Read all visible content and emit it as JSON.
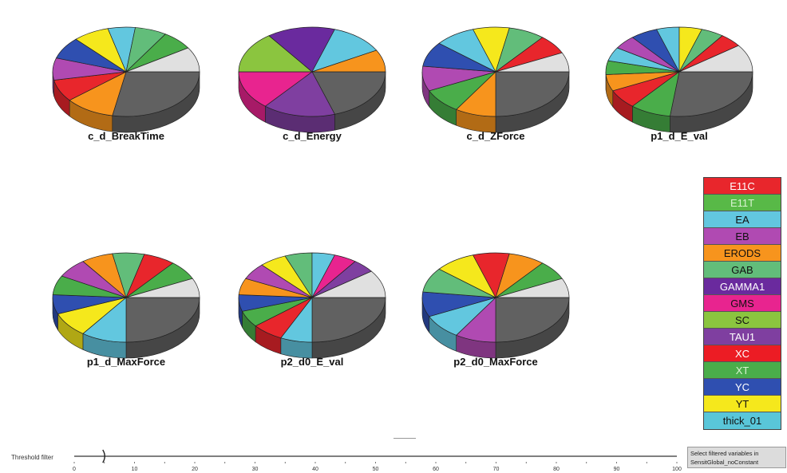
{
  "colors": {
    "E11C": "#e8262c",
    "E11T": "#58b947",
    "EA": "#62c7df",
    "EB": "#b04ab2",
    "ERODS": "#f7941d",
    "GAB": "#62bd7a",
    "GAMMA1": "#6a2a9e",
    "GMS": "#e8248f",
    "SC": "#8bc53f",
    "TAU1": "#7f3fa0",
    "XC": "#ec1c24",
    "XT": "#4aad4a",
    "YC": "#2f4fb0",
    "YT": "#f5e81c",
    "thick_01": "#59c6d9",
    "remainder": "#616161",
    "lid": "#e0e0e0"
  },
  "legend": {
    "items": [
      {
        "label": "E11C",
        "key": "E11C",
        "text_color": "#ffffff"
      },
      {
        "label": "E11T",
        "key": "E11T",
        "text_color": "#d8f3d0"
      },
      {
        "label": "EA",
        "key": "EA",
        "text_color": "#111111"
      },
      {
        "label": "EB",
        "key": "EB",
        "text_color": "#111111"
      },
      {
        "label": "ERODS",
        "key": "ERODS",
        "text_color": "#111111"
      },
      {
        "label": "GAB",
        "key": "GAB",
        "text_color": "#111111"
      },
      {
        "label": "GAMMA1",
        "key": "GAMMA1",
        "text_color": "#ffffff"
      },
      {
        "label": "GMS",
        "key": "GMS",
        "text_color": "#111111"
      },
      {
        "label": "SC",
        "key": "SC",
        "text_color": "#111111"
      },
      {
        "label": "TAU1",
        "key": "TAU1",
        "text_color": "#ffffff"
      },
      {
        "label": "XC",
        "key": "XC",
        "text_color": "#ffffff"
      },
      {
        "label": "XT",
        "key": "XT",
        "text_color": "#d8f3d0"
      },
      {
        "label": "YC",
        "key": "YC",
        "text_color": "#ffffff"
      },
      {
        "label": "YT",
        "key": "YT",
        "text_color": "#111111"
      },
      {
        "label": "thick_01",
        "key": "thick_01",
        "text_color": "#111111"
      }
    ]
  },
  "chart_data": [
    {
      "type": "pie",
      "title": "c_d_BreakTime",
      "slices": [
        {
          "label": "remainder",
          "value": 28
        },
        {
          "label": "ERODS",
          "value": 11
        },
        {
          "label": "E11C",
          "value": 8
        },
        {
          "label": "EB",
          "value": 8
        },
        {
          "label": "YC",
          "value": 8
        },
        {
          "label": "YT",
          "value": 8
        },
        {
          "label": "EA",
          "value": 6
        },
        {
          "label": "GAB",
          "value": 7
        },
        {
          "label": "XT",
          "value": 7
        },
        {
          "label": "lid",
          "value": 9
        }
      ]
    },
    {
      "type": "pie",
      "title": "c_d_Energy",
      "slices": [
        {
          "label": "remainder",
          "value": 20
        },
        {
          "label": "TAU1",
          "value": 16
        },
        {
          "label": "GMS",
          "value": 14
        },
        {
          "label": "SC",
          "value": 15
        },
        {
          "label": "GAMMA1",
          "value": 15
        },
        {
          "label": "EA",
          "value": 12
        },
        {
          "label": "ERODS",
          "value": 8
        }
      ]
    },
    {
      "type": "pie",
      "title": "c_d_ZForce",
      "slices": [
        {
          "label": "remainder",
          "value": 25
        },
        {
          "label": "ERODS",
          "value": 9
        },
        {
          "label": "XT",
          "value": 9
        },
        {
          "label": "EB",
          "value": 9
        },
        {
          "label": "YC",
          "value": 9
        },
        {
          "label": "EA",
          "value": 9
        },
        {
          "label": "YT",
          "value": 8
        },
        {
          "label": "GAB",
          "value": 8
        },
        {
          "label": "E11C",
          "value": 7
        },
        {
          "label": "lid",
          "value": 7
        }
      ]
    },
    {
      "type": "pie",
      "title": "p1_d_E_val",
      "slices": [
        {
          "label": "remainder",
          "value": 27
        },
        {
          "label": "XT",
          "value": 9
        },
        {
          "label": "E11C",
          "value": 7
        },
        {
          "label": "ERODS",
          "value": 6
        },
        {
          "label": "XT",
          "value": 5
        },
        {
          "label": "EA",
          "value": 5
        },
        {
          "label": "EB",
          "value": 5
        },
        {
          "label": "YC",
          "value": 6
        },
        {
          "label": "EA",
          "value": 5
        },
        {
          "label": "YT",
          "value": 5
        },
        {
          "label": "GAB",
          "value": 5
        },
        {
          "label": "E11C",
          "value": 5
        },
        {
          "label": "lid",
          "value": 10
        }
      ]
    },
    {
      "type": "pie",
      "title": "p1_d_MaxForce",
      "slices": [
        {
          "label": "remainder",
          "value": 25
        },
        {
          "label": "EA",
          "value": 10
        },
        {
          "label": "YT",
          "value": 9
        },
        {
          "label": "YC",
          "value": 7
        },
        {
          "label": "XT",
          "value": 7
        },
        {
          "label": "EB",
          "value": 7
        },
        {
          "label": "ERODS",
          "value": 7
        },
        {
          "label": "GAB",
          "value": 7
        },
        {
          "label": "E11C",
          "value": 7
        },
        {
          "label": "XT",
          "value": 7
        },
        {
          "label": "lid",
          "value": 7
        }
      ]
    },
    {
      "type": "pie",
      "title": "p2_d0_E_val",
      "slices": [
        {
          "label": "remainder",
          "value": 25
        },
        {
          "label": "EA",
          "value": 7
        },
        {
          "label": "E11C",
          "value": 7
        },
        {
          "label": "XT",
          "value": 6
        },
        {
          "label": "YC",
          "value": 6
        },
        {
          "label": "ERODS",
          "value": 6
        },
        {
          "label": "EB",
          "value": 6
        },
        {
          "label": "YT",
          "value": 6
        },
        {
          "label": "GAB",
          "value": 6
        },
        {
          "label": "EA",
          "value": 5
        },
        {
          "label": "GMS",
          "value": 5
        },
        {
          "label": "TAU1",
          "value": 5
        },
        {
          "label": "lid",
          "value": 10
        }
      ]
    },
    {
      "type": "pie",
      "title": "p2_d0_MaxForce",
      "slices": [
        {
          "label": "remainder",
          "value": 25
        },
        {
          "label": "EB",
          "value": 9
        },
        {
          "label": "EA",
          "value": 9
        },
        {
          "label": "YC",
          "value": 9
        },
        {
          "label": "GAB",
          "value": 9
        },
        {
          "label": "YT",
          "value": 9
        },
        {
          "label": "E11C",
          "value": 8
        },
        {
          "label": "ERODS",
          "value": 8
        },
        {
          "label": "XT",
          "value": 7
        },
        {
          "label": "lid",
          "value": 7
        }
      ]
    }
  ],
  "threshold": {
    "label": "Threshold filter",
    "value": 5,
    "ticks": [
      "0",
      "10",
      "20",
      "30",
      "40",
      "50",
      "60",
      "70",
      "80",
      "90",
      "100"
    ]
  },
  "select_button": {
    "line1": "Select filtered variables in",
    "line2": "SensitGlobal_noConstant"
  }
}
